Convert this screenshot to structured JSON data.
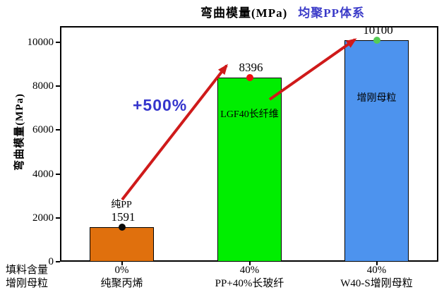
{
  "chart_data": {
    "type": "bar",
    "title": "弯曲模量(MPa)",
    "subtitle": "均聚PP体系",
    "ylabel": "弯曲模量(MPa)",
    "ylim": [
      0,
      10740
    ],
    "yticks": [
      0,
      2000,
      4000,
      6000,
      8000,
      10000
    ],
    "grid": false,
    "legend": "none",
    "x_row_headers": [
      "填料含量",
      "增刚母粒"
    ],
    "categories": [
      {
        "filler": "0%",
        "label": "纯聚丙烯"
      },
      {
        "filler": "40%",
        "label": "PP+40%长玻纤"
      },
      {
        "filler": "40%",
        "label": "W40-S增刚母粒"
      }
    ],
    "values": [
      1591,
      8396,
      10100
    ],
    "value_labels": [
      "1591",
      "8396",
      "10100"
    ],
    "bar_inner_labels": [
      "",
      "LGF40长纤维",
      "增刚母粒"
    ],
    "annotations": {
      "growth": "+500%",
      "pure_pp": "纯PP"
    }
  },
  "colors": {
    "bar_colors": [
      "#e0700d",
      "#00ee00",
      "#4d93ee"
    ],
    "marker_colors": [
      "#0a0a0a",
      "#ee1111",
      "#55cc55"
    ],
    "arrow": "#cf1a1a",
    "subtitle": "#3a3ac8",
    "growth": "#3535cc",
    "axis": "#000000"
  }
}
